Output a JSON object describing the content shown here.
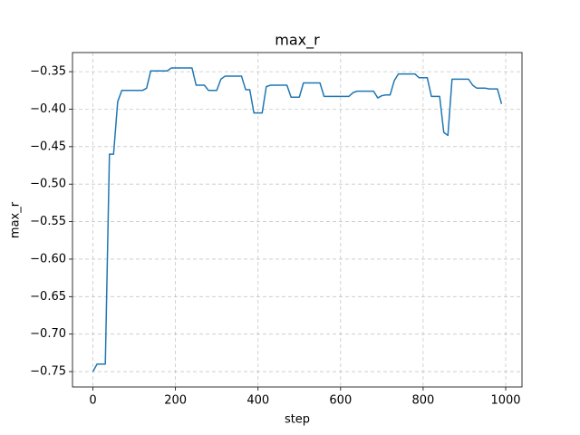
{
  "chart_data": {
    "type": "line",
    "title": "max_r",
    "x_label": "step",
    "y_label": "max_r",
    "color": "#1f77b4",
    "grid": true,
    "x": [
      0,
      10,
      20,
      30,
      40,
      50,
      60,
      70,
      80,
      90,
      100,
      110,
      120,
      130,
      140,
      150,
      160,
      170,
      180,
      190,
      200,
      210,
      220,
      230,
      240,
      250,
      260,
      270,
      280,
      290,
      300,
      310,
      320,
      330,
      340,
      350,
      360,
      370,
      380,
      390,
      400,
      410,
      420,
      430,
      440,
      450,
      460,
      470,
      480,
      490,
      500,
      510,
      520,
      530,
      540,
      550,
      560,
      570,
      580,
      590,
      600,
      610,
      620,
      630,
      640,
      650,
      660,
      670,
      680,
      690,
      700,
      710,
      720,
      730,
      740,
      750,
      760,
      770,
      780,
      790,
      800,
      810,
      820,
      830,
      840,
      850,
      860,
      870,
      880,
      890,
      900,
      910,
      920,
      930,
      940,
      950,
      960,
      970,
      980,
      990
    ],
    "values": [
      -0.75,
      -0.74,
      -0.74,
      -0.74,
      -0.46,
      -0.46,
      -0.39,
      -0.375,
      -0.375,
      -0.375,
      -0.375,
      -0.375,
      -0.375,
      -0.372,
      -0.349,
      -0.349,
      -0.349,
      -0.349,
      -0.349,
      -0.345,
      -0.345,
      -0.345,
      -0.345,
      -0.345,
      -0.345,
      -0.368,
      -0.368,
      -0.368,
      -0.375,
      -0.375,
      -0.375,
      -0.36,
      -0.356,
      -0.356,
      -0.356,
      -0.356,
      -0.356,
      -0.374,
      -0.374,
      -0.405,
      -0.405,
      -0.405,
      -0.37,
      -0.368,
      -0.368,
      -0.368,
      -0.368,
      -0.368,
      -0.384,
      -0.384,
      -0.384,
      -0.365,
      -0.365,
      -0.365,
      -0.365,
      -0.365,
      -0.383,
      -0.383,
      -0.383,
      -0.383,
      -0.383,
      -0.383,
      -0.383,
      -0.378,
      -0.376,
      -0.376,
      -0.376,
      -0.376,
      -0.376,
      -0.385,
      -0.382,
      -0.381,
      -0.381,
      -0.362,
      -0.353,
      -0.353,
      -0.353,
      -0.353,
      -0.353,
      -0.358,
      -0.358,
      -0.358,
      -0.383,
      -0.383,
      -0.383,
      -0.431,
      -0.435,
      -0.36,
      -0.36,
      -0.36,
      -0.36,
      -0.36,
      -0.368,
      -0.372,
      -0.372,
      -0.372,
      -0.373,
      -0.373,
      -0.373,
      -0.393
    ],
    "xlim": [
      -49.5,
      1039.5
    ],
    "ylim": [
      -0.7705,
      -0.3245
    ],
    "xticks": [
      0,
      200,
      400,
      600,
      800,
      1000
    ],
    "yticks": [
      {
        "value": -0.75,
        "label": "−0.75"
      },
      {
        "value": -0.7,
        "label": "−0.70"
      },
      {
        "value": -0.65,
        "label": "−0.65"
      },
      {
        "value": -0.6,
        "label": "−0.60"
      },
      {
        "value": -0.55,
        "label": "−0.55"
      },
      {
        "value": -0.5,
        "label": "−0.50"
      },
      {
        "value": -0.45,
        "label": "−0.45"
      },
      {
        "value": -0.4,
        "label": "−0.40"
      },
      {
        "value": -0.35,
        "label": "−0.35"
      }
    ]
  }
}
